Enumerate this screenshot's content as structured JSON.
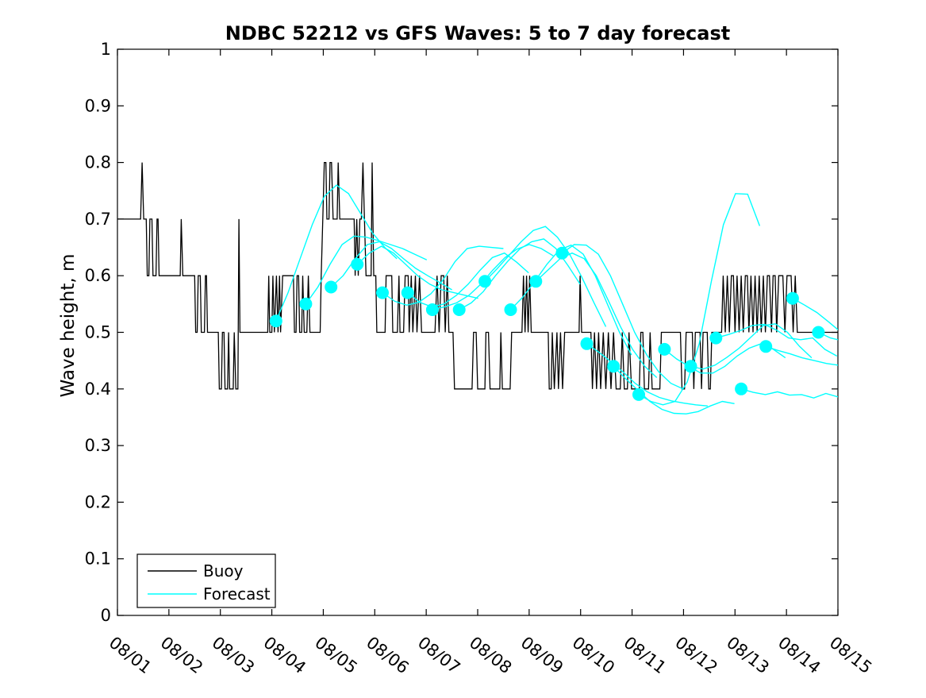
{
  "chart_data": {
    "type": "line",
    "title": "NDBC 52212 vs GFS Waves: 5 to 7 day forecast",
    "xlabel": "",
    "ylabel": "Wave height, m",
    "xlim_days": [
      0,
      14
    ],
    "ylim": [
      0,
      1
    ],
    "grid": false,
    "x_tick_labels": [
      "08/01",
      "08/02",
      "08/03",
      "08/04",
      "08/05",
      "08/06",
      "08/07",
      "08/08",
      "08/09",
      "08/10",
      "08/11",
      "08/12",
      "08/13",
      "08/14",
      "08/15"
    ],
    "y_tick_labels": [
      "0",
      "0.1",
      "0.2",
      "0.3",
      "0.4",
      "0.5",
      "0.6",
      "0.7",
      "0.8",
      "0.9",
      "1"
    ],
    "legend": [
      "Buoy",
      "Forecast"
    ],
    "legend_position": "lower-left",
    "colors": {
      "buoy": "#000000",
      "forecast": "#00ffff",
      "axis": "#000000",
      "background": "#ffffff"
    },
    "marker": {
      "shape": "circle",
      "radius_px": 8,
      "color": "#00ffff",
      "location": "first point of each forecast run"
    },
    "buoy_series_day_value": [
      [
        0.0,
        0.7
      ],
      [
        0.45,
        0.7
      ],
      [
        0.48,
        0.8
      ],
      [
        0.51,
        0.7
      ],
      [
        0.56,
        0.7
      ],
      [
        0.58,
        0.6
      ],
      [
        0.61,
        0.6
      ],
      [
        0.63,
        0.7
      ],
      [
        0.67,
        0.7
      ],
      [
        0.69,
        0.6
      ],
      [
        0.75,
        0.6
      ],
      [
        0.77,
        0.7
      ],
      [
        0.79,
        0.7
      ],
      [
        0.81,
        0.6
      ],
      [
        1.22,
        0.6
      ],
      [
        1.24,
        0.7
      ],
      [
        1.27,
        0.6
      ],
      [
        1.5,
        0.6
      ],
      [
        1.52,
        0.5
      ],
      [
        1.55,
        0.5
      ],
      [
        1.57,
        0.6
      ],
      [
        1.61,
        0.6
      ],
      [
        1.63,
        0.5
      ],
      [
        1.69,
        0.5
      ],
      [
        1.71,
        0.6
      ],
      [
        1.73,
        0.6
      ],
      [
        1.75,
        0.5
      ],
      [
        1.96,
        0.5
      ],
      [
        1.98,
        0.4
      ],
      [
        2.02,
        0.4
      ],
      [
        2.04,
        0.5
      ],
      [
        2.07,
        0.5
      ],
      [
        2.09,
        0.4
      ],
      [
        2.14,
        0.4
      ],
      [
        2.16,
        0.5
      ],
      [
        2.18,
        0.4
      ],
      [
        2.25,
        0.4
      ],
      [
        2.27,
        0.5
      ],
      [
        2.3,
        0.4
      ],
      [
        2.34,
        0.4
      ],
      [
        2.36,
        0.7
      ],
      [
        2.38,
        0.5
      ],
      [
        2.92,
        0.5
      ],
      [
        2.94,
        0.6
      ],
      [
        2.96,
        0.5
      ],
      [
        3.0,
        0.5
      ],
      [
        3.02,
        0.6
      ],
      [
        3.05,
        0.5
      ],
      [
        3.09,
        0.6
      ],
      [
        3.12,
        0.5
      ],
      [
        3.15,
        0.6
      ],
      [
        3.17,
        0.5
      ],
      [
        3.21,
        0.6
      ],
      [
        3.42,
        0.6
      ],
      [
        3.44,
        0.5
      ],
      [
        3.47,
        0.5
      ],
      [
        3.49,
        0.6
      ],
      [
        3.52,
        0.6
      ],
      [
        3.54,
        0.5
      ],
      [
        3.58,
        0.5
      ],
      [
        3.6,
        0.6
      ],
      [
        3.63,
        0.5
      ],
      [
        3.68,
        0.5
      ],
      [
        3.71,
        0.6
      ],
      [
        3.74,
        0.5
      ],
      [
        3.94,
        0.5
      ],
      [
        3.96,
        0.6
      ],
      [
        3.99,
        0.7
      ],
      [
        4.02,
        0.8
      ],
      [
        4.05,
        0.8
      ],
      [
        4.07,
        0.7
      ],
      [
        4.11,
        0.7
      ],
      [
        4.13,
        0.8
      ],
      [
        4.16,
        0.8
      ],
      [
        4.19,
        0.7
      ],
      [
        4.27,
        0.7
      ],
      [
        4.29,
        0.8
      ],
      [
        4.32,
        0.7
      ],
      [
        4.6,
        0.7
      ],
      [
        4.62,
        0.6
      ],
      [
        4.65,
        0.7
      ],
      [
        4.68,
        0.6
      ],
      [
        4.71,
        0.7
      ],
      [
        4.74,
        0.7
      ],
      [
        4.77,
        0.8
      ],
      [
        4.8,
        0.7
      ],
      [
        4.83,
        0.6
      ],
      [
        4.93,
        0.6
      ],
      [
        4.95,
        0.8
      ],
      [
        4.98,
        0.6
      ],
      [
        5.02,
        0.6
      ],
      [
        5.04,
        0.5
      ],
      [
        5.2,
        0.5
      ],
      [
        5.22,
        0.6
      ],
      [
        5.33,
        0.6
      ],
      [
        5.35,
        0.5
      ],
      [
        5.44,
        0.5
      ],
      [
        5.47,
        0.6
      ],
      [
        5.49,
        0.5
      ],
      [
        5.56,
        0.5
      ],
      [
        5.59,
        0.6
      ],
      [
        5.65,
        0.6
      ],
      [
        5.67,
        0.5
      ],
      [
        5.71,
        0.6
      ],
      [
        5.74,
        0.5
      ],
      [
        5.79,
        0.6
      ],
      [
        5.82,
        0.5
      ],
      [
        5.87,
        0.6
      ],
      [
        5.91,
        0.5
      ],
      [
        6.17,
        0.5
      ],
      [
        6.21,
        0.6
      ],
      [
        6.25,
        0.5
      ],
      [
        6.29,
        0.6
      ],
      [
        6.34,
        0.6
      ],
      [
        6.37,
        0.5
      ],
      [
        6.41,
        0.6
      ],
      [
        6.44,
        0.5
      ],
      [
        6.52,
        0.5
      ],
      [
        6.55,
        0.4
      ],
      [
        6.89,
        0.4
      ],
      [
        6.92,
        0.5
      ],
      [
        6.97,
        0.5
      ],
      [
        7.0,
        0.4
      ],
      [
        7.14,
        0.4
      ],
      [
        7.16,
        0.5
      ],
      [
        7.21,
        0.5
      ],
      [
        7.24,
        0.4
      ],
      [
        7.43,
        0.4
      ],
      [
        7.45,
        0.5
      ],
      [
        7.48,
        0.4
      ],
      [
        7.63,
        0.4
      ],
      [
        7.66,
        0.5
      ],
      [
        7.86,
        0.5
      ],
      [
        7.89,
        0.6
      ],
      [
        7.92,
        0.5
      ],
      [
        7.95,
        0.6
      ],
      [
        7.98,
        0.5
      ],
      [
        8.01,
        0.6
      ],
      [
        8.04,
        0.5
      ],
      [
        8.15,
        0.5
      ],
      [
        8.37,
        0.5
      ],
      [
        8.39,
        0.4
      ],
      [
        8.43,
        0.4
      ],
      [
        8.45,
        0.5
      ],
      [
        8.49,
        0.4
      ],
      [
        8.54,
        0.5
      ],
      [
        8.57,
        0.4
      ],
      [
        8.61,
        0.5
      ],
      [
        8.65,
        0.4
      ],
      [
        8.69,
        0.5
      ],
      [
        8.73,
        0.5
      ],
      [
        8.97,
        0.5
      ],
      [
        8.99,
        0.6
      ],
      [
        9.02,
        0.5
      ],
      [
        9.2,
        0.5
      ],
      [
        9.23,
        0.4
      ],
      [
        9.27,
        0.5
      ],
      [
        9.31,
        0.4
      ],
      [
        9.35,
        0.5
      ],
      [
        9.39,
        0.4
      ],
      [
        9.44,
        0.5
      ],
      [
        9.49,
        0.4
      ],
      [
        9.54,
        0.5
      ],
      [
        9.59,
        0.4
      ],
      [
        9.64,
        0.5
      ],
      [
        9.69,
        0.4
      ],
      [
        9.77,
        0.4
      ],
      [
        9.81,
        0.5
      ],
      [
        9.85,
        0.4
      ],
      [
        9.91,
        0.4
      ],
      [
        9.94,
        0.5
      ],
      [
        9.99,
        0.4
      ],
      [
        10.14,
        0.4
      ],
      [
        10.17,
        0.5
      ],
      [
        10.21,
        0.5
      ],
      [
        10.24,
        0.4
      ],
      [
        10.32,
        0.4
      ],
      [
        10.35,
        0.5
      ],
      [
        10.39,
        0.4
      ],
      [
        10.54,
        0.4
      ],
      [
        10.57,
        0.5
      ],
      [
        10.94,
        0.5
      ],
      [
        10.97,
        0.4
      ],
      [
        11.02,
        0.4
      ],
      [
        11.05,
        0.5
      ],
      [
        11.17,
        0.5
      ],
      [
        11.2,
        0.4
      ],
      [
        11.23,
        0.5
      ],
      [
        11.32,
        0.5
      ],
      [
        11.35,
        0.4
      ],
      [
        11.38,
        0.5
      ],
      [
        11.46,
        0.5
      ],
      [
        11.49,
        0.4
      ],
      [
        11.52,
        0.4
      ],
      [
        11.55,
        0.5
      ],
      [
        11.74,
        0.5
      ],
      [
        11.77,
        0.6
      ],
      [
        11.81,
        0.5
      ],
      [
        11.85,
        0.6
      ],
      [
        11.89,
        0.5
      ],
      [
        11.93,
        0.6
      ],
      [
        11.97,
        0.6
      ],
      [
        12.0,
        0.5
      ],
      [
        12.04,
        0.6
      ],
      [
        12.08,
        0.5
      ],
      [
        12.12,
        0.6
      ],
      [
        12.16,
        0.5
      ],
      [
        12.2,
        0.6
      ],
      [
        12.24,
        0.6
      ],
      [
        12.27,
        0.5
      ],
      [
        12.31,
        0.6
      ],
      [
        12.35,
        0.5
      ],
      [
        12.39,
        0.6
      ],
      [
        12.43,
        0.5
      ],
      [
        12.47,
        0.6
      ],
      [
        12.51,
        0.5
      ],
      [
        12.55,
        0.6
      ],
      [
        12.59,
        0.5
      ],
      [
        12.63,
        0.6
      ],
      [
        12.67,
        0.6
      ],
      [
        12.71,
        0.5
      ],
      [
        12.74,
        0.6
      ],
      [
        12.78,
        0.6
      ],
      [
        12.81,
        0.5
      ],
      [
        12.85,
        0.6
      ],
      [
        12.89,
        0.6
      ],
      [
        12.93,
        0.6
      ],
      [
        12.97,
        0.5
      ],
      [
        13.01,
        0.6
      ],
      [
        13.05,
        0.6
      ],
      [
        13.09,
        0.6
      ],
      [
        13.13,
        0.5
      ],
      [
        13.17,
        0.6
      ],
      [
        13.21,
        0.5
      ],
      [
        13.26,
        0.5
      ],
      [
        14.0,
        0.5
      ]
    ],
    "forecast_runs": [
      {
        "start_day": 3.08,
        "step_days": 0.235,
        "values": [
          0.52,
          0.57,
          0.63,
          0.69,
          0.74,
          0.76,
          0.745,
          0.71,
          0.675,
          0.65,
          0.63
        ]
      },
      {
        "start_day": 3.66,
        "step_days": 0.235,
        "values": [
          0.55,
          0.58,
          0.62,
          0.655,
          0.67,
          0.668,
          0.662,
          0.655,
          0.648,
          0.638,
          0.628
        ]
      },
      {
        "start_day": 4.15,
        "step_days": 0.235,
        "values": [
          0.58,
          0.6,
          0.63,
          0.655,
          0.66,
          0.648,
          0.63,
          0.613,
          0.6,
          0.588,
          0.575
        ]
      },
      {
        "start_day": 4.66,
        "step_days": 0.235,
        "values": [
          0.62,
          0.64,
          0.652,
          0.64,
          0.62,
          0.6,
          0.585,
          0.575,
          0.57,
          0.565,
          0.56
        ]
      },
      {
        "start_day": 5.15,
        "step_days": 0.235,
        "values": [
          0.57,
          0.555,
          0.548,
          0.553,
          0.568,
          0.592,
          0.625,
          0.648,
          0.652,
          0.65,
          0.648
        ]
      },
      {
        "start_day": 5.64,
        "step_days": 0.235,
        "values": [
          0.57,
          0.553,
          0.545,
          0.55,
          0.565,
          0.585,
          0.61,
          0.632,
          0.64,
          0.624,
          0.605
        ]
      },
      {
        "start_day": 6.12,
        "step_days": 0.235,
        "values": [
          0.54,
          0.545,
          0.552,
          0.565,
          0.585,
          0.61,
          0.632,
          0.647,
          0.655,
          0.648,
          0.635
        ]
      },
      {
        "start_day": 6.64,
        "step_days": 0.235,
        "values": [
          0.54,
          0.552,
          0.572,
          0.6,
          0.625,
          0.647,
          0.66,
          0.665,
          0.648,
          0.618,
          0.585
        ]
      },
      {
        "start_day": 7.14,
        "step_days": 0.235,
        "values": [
          0.59,
          0.612,
          0.636,
          0.66,
          0.68,
          0.687,
          0.668,
          0.638,
          0.598,
          0.553,
          0.51
        ]
      },
      {
        "start_day": 7.64,
        "step_days": 0.235,
        "values": [
          0.54,
          0.562,
          0.59,
          0.62,
          0.645,
          0.654,
          0.638,
          0.6,
          0.55,
          0.5,
          0.46
        ]
      },
      {
        "start_day": 8.13,
        "step_days": 0.235,
        "values": [
          0.59,
          0.61,
          0.63,
          0.64,
          0.63,
          0.6,
          0.556,
          0.51,
          0.47,
          0.44,
          0.42
        ]
      },
      {
        "start_day": 8.64,
        "step_days": 0.235,
        "values": [
          0.64,
          0.655,
          0.654,
          0.638,
          0.6,
          0.55,
          0.5,
          0.46,
          0.43,
          0.41,
          0.4
        ]
      },
      {
        "start_day": 9.12,
        "step_days": 0.235,
        "values": [
          0.48,
          0.465,
          0.448,
          0.43,
          0.41,
          0.395,
          0.385,
          0.379,
          0.375,
          0.372,
          0.37
        ]
      },
      {
        "start_day": 9.64,
        "step_days": 0.235,
        "values": [
          0.44,
          0.418,
          0.398,
          0.378,
          0.364,
          0.357,
          0.356,
          0.36,
          0.37,
          0.378,
          0.374
        ]
      },
      {
        "start_day": 10.13,
        "step_days": 0.235,
        "values": [
          0.39,
          0.378,
          0.372,
          0.378,
          0.412,
          0.48,
          0.59,
          0.69,
          0.745,
          0.744,
          0.688
        ]
      },
      {
        "start_day": 10.63,
        "step_days": 0.235,
        "values": [
          0.47,
          0.453,
          0.44,
          0.428,
          0.428,
          0.44,
          0.458,
          0.472,
          0.48,
          0.47,
          0.455
        ]
      },
      {
        "start_day": 11.14,
        "step_days": 0.235,
        "values": [
          0.44,
          0.435,
          0.442,
          0.456,
          0.472,
          0.492,
          0.512,
          0.515,
          0.5,
          0.475,
          0.455
        ]
      },
      {
        "start_day": 11.63,
        "step_days": 0.235,
        "values": [
          0.49,
          0.496,
          0.503,
          0.512,
          0.514,
          0.504,
          0.49,
          0.487,
          0.49,
          0.47,
          0.458
        ]
      },
      {
        "start_day": 12.12,
        "step_days": 0.235,
        "values": [
          0.4,
          0.394,
          0.39,
          0.395,
          0.389,
          0.39,
          0.384,
          0.392,
          0.386,
          0.396,
          0.39
        ]
      },
      {
        "start_day": 12.6,
        "step_days": 0.235,
        "values": [
          0.475,
          0.468,
          0.462,
          0.455,
          0.45,
          0.445,
          0.442,
          0.45,
          0.455,
          0.46,
          0.465
        ]
      },
      {
        "start_day": 13.12,
        "step_days": 0.235,
        "values": [
          0.56,
          0.548,
          0.535,
          0.518,
          0.5,
          0.485,
          0.47,
          0.462,
          0.455,
          0.45,
          0.445
        ]
      },
      {
        "start_day": 13.62,
        "step_days": 0.235,
        "values": [
          0.5,
          0.49,
          0.485,
          0.48,
          0.478,
          0.476,
          0.474,
          0.472,
          0.47,
          0.468,
          0.466
        ]
      }
    ]
  }
}
